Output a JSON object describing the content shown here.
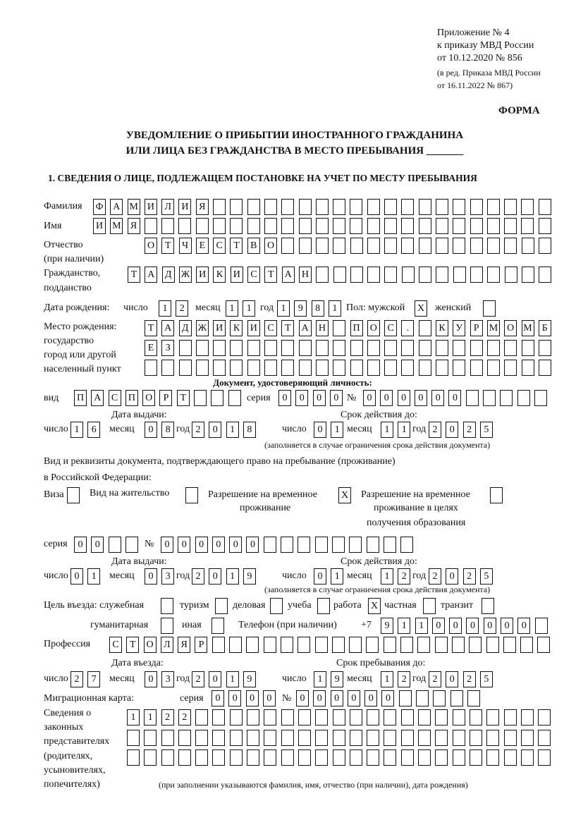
{
  "header": {
    "appendix": "Приложение № 4",
    "order": "к приказу МВД России",
    "order_date": "от 10.12.2020 № 856",
    "edition": "(в ред. Приказа МВД России",
    "edition_date": "от 16.11.2022 № 867)",
    "form_label": "ФОРМА",
    "title_line1": "УВЕДОМЛЕНИЕ О ПРИБЫТИИ ИНОСТРАННОГО ГРАЖДАНИНА",
    "title_line2": "ИЛИ ЛИЦА БЕЗ ГРАЖДАНСТВА В МЕСТО ПРЕБЫВАНИЯ _______",
    "section1": "1. СВЕДЕНИЯ О ЛИЦЕ, ПОДЛЕЖАЩЕМ ПОСТАНОВКЕ НА УЧЕТ ПО МЕСТУ ПРЕБЫВАНИЯ"
  },
  "labels": {
    "surname": "Фамилия",
    "name": "Имя",
    "patronymic": "Отчество",
    "patronymic_note": "(при наличии)",
    "citizenship": "Гражданство,",
    "citizenship2": "подданство",
    "birth_date": "Дата рождения:",
    "day": "число",
    "month": "месяц",
    "year": "год",
    "sex_male": "Пол: мужской",
    "sex_female": "женский",
    "birthplace1": "Место рождения:",
    "birthplace2": "государство",
    "birthplace3": "город или другой",
    "birthplace4": "населенный пункт",
    "id_doc": "Документ, удостоверяющий личность:",
    "kind": "вид",
    "series": "серия",
    "number": "№",
    "issue_date": "Дата выдачи:",
    "valid_until": "Срок действия до:",
    "valid_note": "(заполняется в случае ограничения срока действия документа)",
    "right_doc1": "Вид и реквизиты документа, подтверждающего право на пребывание (проживание)",
    "right_doc2": "в Российской Федерации:",
    "visa": "Виза",
    "residence": "Вид на жительство",
    "temp1": "Разрешение на временное",
    "temp2": "проживание",
    "edu1": "Разрешение на временное",
    "edu2": "проживание в целях",
    "edu3": "получения образования",
    "purpose": "Цель въезда: служебная",
    "tourism": "туризм",
    "business": "деловая",
    "study": "учеба",
    "work": "работа",
    "private": "частная",
    "transit": "транзит",
    "humanitarian": "гуманитарная",
    "other": "иная",
    "phone": "Телефон (при наличии)",
    "phone_prefix": "+7",
    "profession": "Профессия",
    "entry_date": "Дата въезда:",
    "stay_until": "Срок пребывания до:",
    "migration_card": "Миграционная карта:",
    "reps1": "Сведения о",
    "reps2": "законных",
    "reps3": "представителях",
    "reps4": "(родителях,",
    "reps5": "усыновителях,",
    "reps6": "попечителях)",
    "reps_note": "(при заполнении указываются фамилия, имя, отчество (при наличии), дата рождения)"
  },
  "values": {
    "surname": "ФАМИЛИЯ",
    "name": "ИМЯ",
    "patronymic": "ОТЧЕСТВО",
    "citizenship": "ТАДЖИКИСТАН",
    "birth_day": "12",
    "birth_month": "11",
    "birth_year": "1981",
    "sex_male": "X",
    "sex_female": "",
    "birthplace1": "ТАДЖИКИСТАН ПОС. КУРМОМБ",
    "birthplace2": "ЕЗ",
    "birthplace3": "",
    "id_kind": "ПАСПОРТ",
    "id_series": "0000",
    "id_number": "000000",
    "id_issue_day": "16",
    "id_issue_month": "08",
    "id_issue_year": "2018",
    "id_valid_day": "01",
    "id_valid_month": "11",
    "id_valid_year": "2025",
    "visa": "",
    "residence": "",
    "temp_residence": "X",
    "edu_residence": "",
    "rd_series": "00",
    "rd_number": "000000",
    "rd_issue_day": "01",
    "rd_issue_month": "03",
    "rd_issue_year": "2019",
    "rd_valid_day": "01",
    "rd_valid_month": "12",
    "rd_valid_year": "2025",
    "p_official": "",
    "p_tourism": "",
    "p_business": "",
    "p_study": "",
    "p_work": "X",
    "p_private": "",
    "p_transit": "",
    "p_humanitarian": "",
    "p_other": "",
    "phone": "911000000",
    "profession": "СТОЛЯР",
    "entry_day": "27",
    "entry_month": "03",
    "entry_year": "2019",
    "stay_day": "19",
    "stay_month": "12",
    "stay_year": "2025",
    "mc_series": "0000",
    "mc_number": "000000",
    "reps1": "1122",
    "reps2": "",
    "reps3": ""
  }
}
